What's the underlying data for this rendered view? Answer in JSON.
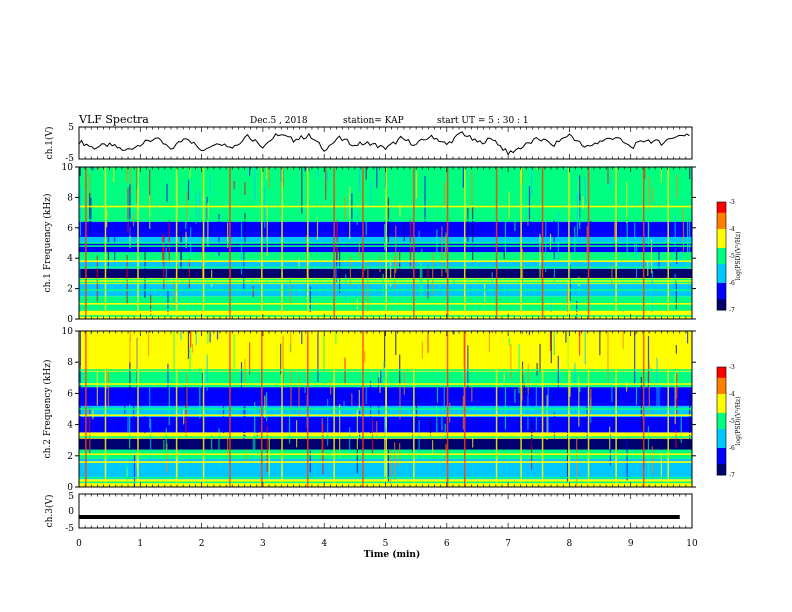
{
  "header": {
    "title": "VLF Spectra",
    "date": "Dec.5 , 2018",
    "station": "station= KAP",
    "start": "start UT = 5 : 30 : 1"
  },
  "colors": {
    "colormap": [
      "#00006e",
      "#0000ff",
      "#00c8ff",
      "#00ff80",
      "#ffff00",
      "#ff8000",
      "#ff0000",
      "#ffffff"
    ],
    "trace": "#000000",
    "frame": "#000000"
  },
  "chart_data": [
    {
      "type": "line",
      "panel": "ch1-waveform",
      "ylabel": "ch.1(V)",
      "yticks": [
        "5",
        "-5"
      ],
      "ylim": [
        -5,
        5
      ],
      "xlim": [
        0,
        10
      ],
      "x": [
        0.0,
        0.25,
        0.5,
        0.75,
        1.0,
        1.25,
        1.5,
        1.75,
        2.0,
        2.25,
        2.5,
        2.75,
        3.0,
        3.25,
        3.5,
        3.75,
        4.0,
        4.25,
        4.5,
        4.75,
        5.0,
        5.25,
        5.5,
        5.75,
        6.0,
        6.25,
        6.5,
        6.75,
        7.0,
        7.25,
        7.5,
        7.75,
        8.0,
        8.25,
        8.5,
        8.75,
        9.0,
        9.25,
        9.5,
        9.75
      ],
      "y": [
        0.5,
        -1.5,
        -0.5,
        -2.5,
        -0.5,
        1.5,
        -2.0,
        2.0,
        -2.5,
        0.5,
        -1.5,
        2.5,
        -1.0,
        3.0,
        1.0,
        2.5,
        -2.0,
        1.5,
        -0.5,
        0.0,
        -2.0,
        1.5,
        -0.5,
        2.5,
        -0.5,
        3.5,
        0.0,
        1.5,
        -3.5,
        -1.0,
        1.5,
        -0.5,
        3.0,
        -1.5,
        0.5,
        2.0,
        -1.5,
        1.0,
        0.0,
        2.5
      ]
    },
    {
      "type": "heatmap",
      "panel": "ch1-spectrogram",
      "ylabel": "ch.1 Frequency (kHz)",
      "yticks": [
        "0",
        "2",
        "4",
        "6",
        "8",
        "10"
      ],
      "ylim": [
        0,
        10
      ],
      "xlim": [
        0,
        10
      ],
      "colorbar": {
        "label": "log(PSD)(V²/Hz)",
        "ticks": [
          "-3",
          "-4",
          "-5",
          "-6",
          "-7"
        ],
        "range": [
          -7,
          -3
        ]
      },
      "bands": [
        {
          "from": 0.0,
          "to": 0.6,
          "level": -4.5
        },
        {
          "from": 0.6,
          "to": 1.5,
          "level": -5.2
        },
        {
          "from": 1.5,
          "to": 2.3,
          "level": -5.4
        },
        {
          "from": 2.3,
          "to": 2.7,
          "level": -4.2
        },
        {
          "from": 2.7,
          "to": 3.3,
          "level": -6.8
        },
        {
          "from": 3.3,
          "to": 3.8,
          "level": -6.0
        },
        {
          "from": 3.8,
          "to": 4.4,
          "level": -5.0
        },
        {
          "from": 4.4,
          "to": 5.0,
          "level": -6.2
        },
        {
          "from": 5.0,
          "to": 5.4,
          "level": -5.6
        },
        {
          "from": 5.4,
          "to": 6.4,
          "level": -6.5
        },
        {
          "from": 6.4,
          "to": 7.3,
          "level": -5.2
        },
        {
          "from": 7.3,
          "to": 10.0,
          "level": -4.7
        }
      ],
      "lines_khz": [
        0.2,
        0.4,
        0.6,
        1.0,
        1.9,
        2.4,
        2.6,
        3.4,
        3.8,
        4.8,
        5.0,
        6.5,
        7.4
      ],
      "spikes_min": [
        0.1,
        0.42,
        0.95,
        1.58,
        2.02,
        2.45,
        2.97,
        3.3,
        3.72,
        4.15,
        4.62,
        5.0,
        5.45,
        6.0,
        6.28,
        6.8,
        7.2,
        7.55,
        7.98,
        8.3,
        8.75,
        9.2,
        9.6
      ]
    },
    {
      "type": "heatmap",
      "panel": "ch2-spectrogram",
      "ylabel": "ch.2 Frequency (kHz)",
      "yticks": [
        "0",
        "2",
        "4",
        "6",
        "8",
        "10"
      ],
      "ylim": [
        0,
        10
      ],
      "xlim": [
        0,
        10
      ],
      "colorbar": {
        "label": "log(PSD)(V²/Hz)",
        "ticks": [
          "-3",
          "-4",
          "-5",
          "-6",
          "-7"
        ],
        "range": [
          -7,
          -3
        ]
      },
      "bands": [
        {
          "from": 0.0,
          "to": 0.5,
          "level": -4.4
        },
        {
          "from": 0.5,
          "to": 1.8,
          "level": -5.5
        },
        {
          "from": 1.8,
          "to": 2.4,
          "level": -5.0
        },
        {
          "from": 2.4,
          "to": 3.1,
          "level": -6.8
        },
        {
          "from": 3.1,
          "to": 3.5,
          "level": -4.2
        },
        {
          "from": 3.5,
          "to": 4.5,
          "level": -6.3
        },
        {
          "from": 4.5,
          "to": 5.2,
          "level": -5.4
        },
        {
          "from": 5.2,
          "to": 6.4,
          "level": -6.6
        },
        {
          "from": 6.4,
          "to": 7.4,
          "level": -5.3
        },
        {
          "from": 7.4,
          "to": 10.0,
          "level": -4.3
        }
      ],
      "lines_khz": [
        0.3,
        0.6,
        1.6,
        2.1,
        3.2,
        3.4,
        4.6,
        5.0,
        6.6,
        7.5
      ],
      "spikes_min": [
        0.1,
        0.42,
        0.95,
        1.58,
        2.02,
        2.45,
        2.97,
        3.3,
        3.72,
        4.15,
        4.62,
        5.0,
        5.45,
        6.0,
        6.28,
        6.8,
        7.2,
        7.55,
        7.98,
        8.3,
        8.75,
        9.2,
        9.6
      ]
    },
    {
      "type": "line",
      "panel": "ch3-waveform",
      "ylabel": "ch.3(V)",
      "yticks": [
        "5",
        "0",
        "-5"
      ],
      "ylim": [
        -5,
        5
      ],
      "xlim": [
        0,
        10
      ],
      "x": [
        0,
        9.8
      ],
      "y": [
        -2,
        -2
      ]
    }
  ],
  "xaxis": {
    "label": "Time (min)",
    "ticks": [
      "0",
      "1",
      "2",
      "3",
      "4",
      "5",
      "6",
      "7",
      "8",
      "9",
      "10"
    ]
  }
}
